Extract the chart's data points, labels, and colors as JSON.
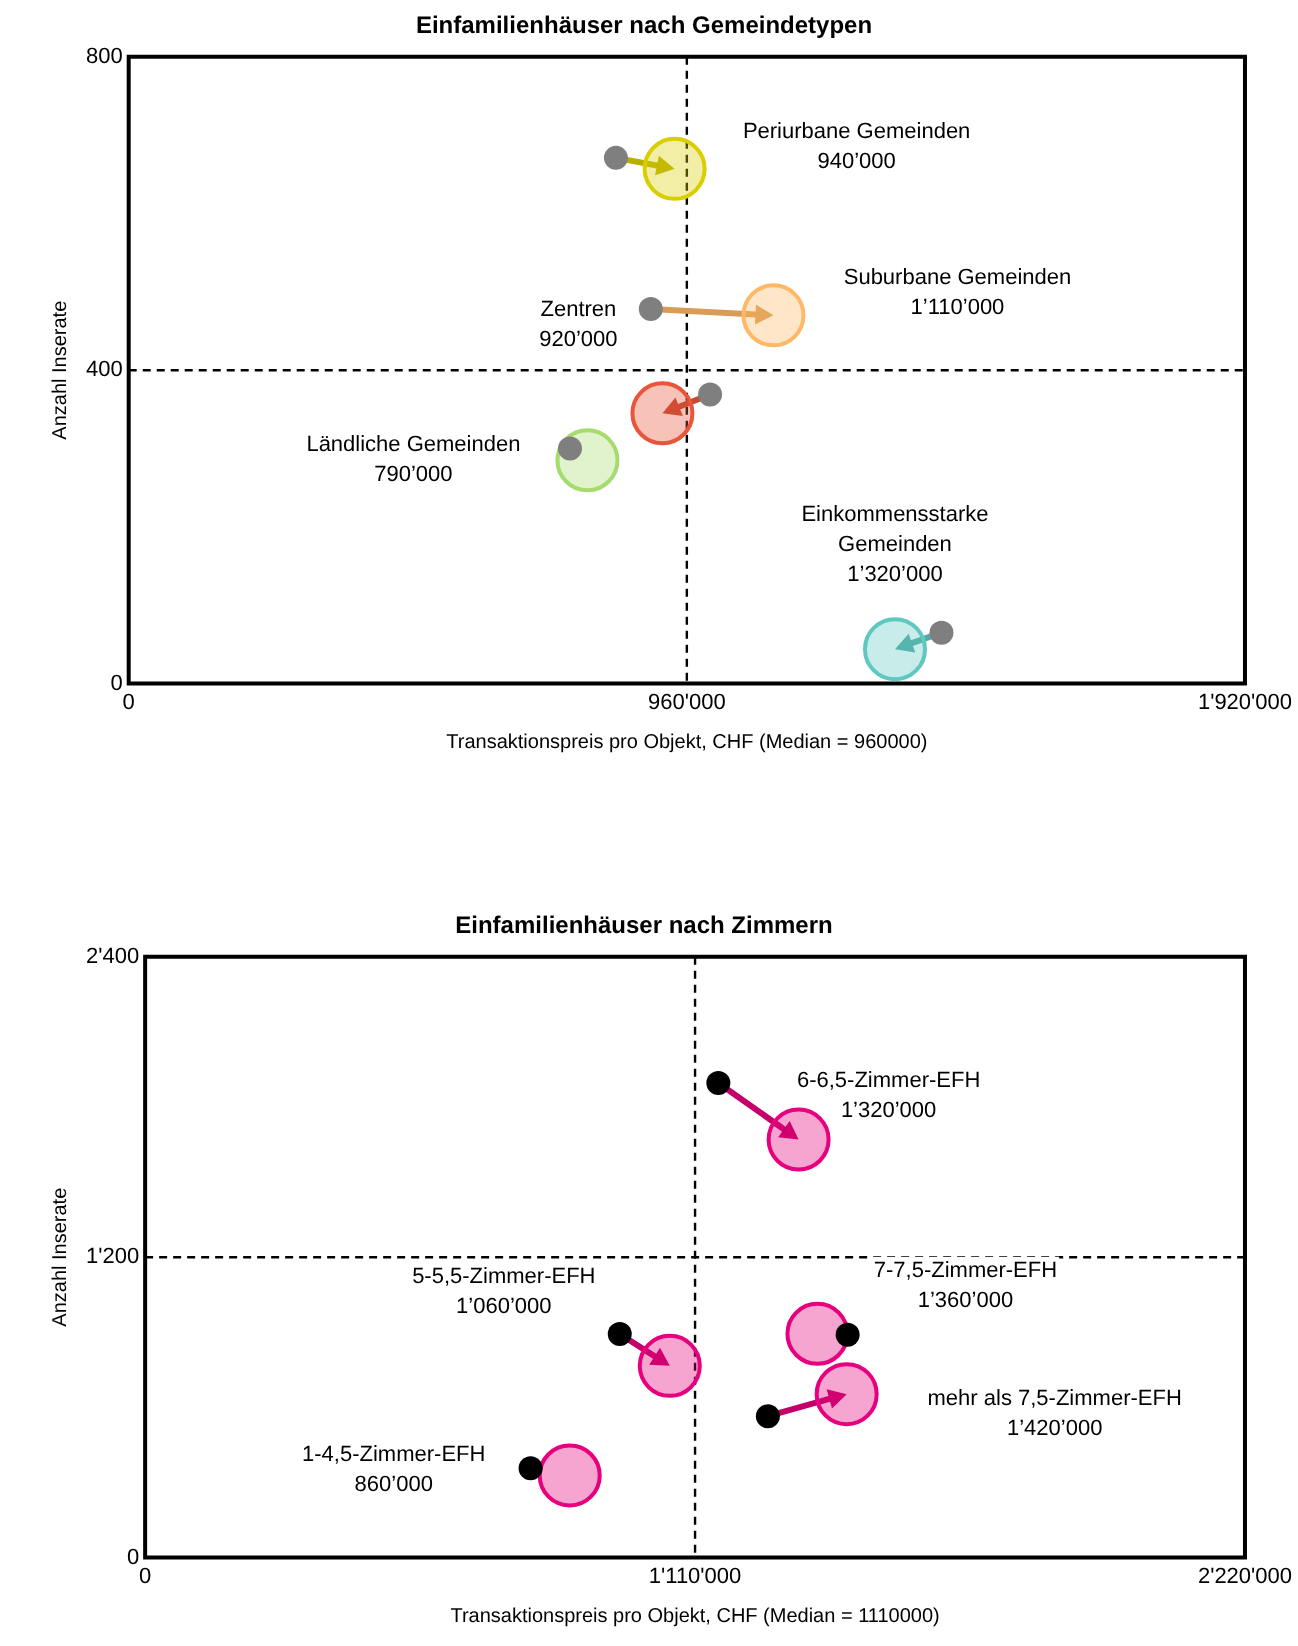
{
  "chart_data": [
    {
      "type": "scatter",
      "title": "Einfamilienhäuser nach Gemeindetypen",
      "xlabel": "Transaktionspreis pro Objekt, CHF (Median = 960000)",
      "ylabel": "Anzahl Inserate",
      "xlim": [
        0,
        1920000
      ],
      "xticks": [
        0,
        {
          "value": 960000,
          "label": "960'000"
        },
        {
          "value": 1920000,
          "label": "1'920'000"
        }
      ],
      "ylim": [
        0,
        800
      ],
      "yticks": [
        0,
        400,
        800
      ],
      "grid": false,
      "legend": false,
      "marker": "circle",
      "series": [
        {
          "color": "#7f7f7f",
          "x": [
            838000,
            898000,
            1000000,
            759000,
            1398000
          ],
          "values": [
            671,
            478,
            369,
            300,
            65
          ]
        },
        {
          "colors": [
            "#d9cf00",
            "#ffb866",
            "#e8553a",
            "#a6dc6e",
            "#5fc8c0"
          ],
          "x": [
            939000,
            1109000,
            918000,
            789000,
            1318000
          ],
          "values": [
            657,
            470,
            345,
            285,
            44
          ]
        }
      ],
      "ref_lines": [
        {
          "axis": "x",
          "value": 960000,
          "line_style": "dashed",
          "color": "#000000"
        },
        {
          "axis": "y",
          "value": 400,
          "line_style": "dashed",
          "color": "#000000"
        }
      ],
      "annotations": [
        "Periurbane Gemeinden\n940’000",
        "Suburbane Gemeinden\n1’110’000",
        "Zentren\n920’000",
        "Ländliche Gemeinden\n790’000",
        "Einkommensstarke\nGemeinden\n1’320’000"
      ]
    },
    {
      "type": "scatter",
      "title": "Einfamilienhäuser nach Zimmern",
      "xlabel": "Transaktionspreis pro Objekt, CHF (Median = 1110000)",
      "ylabel": "Anzahl Inserate",
      "xlim": [
        0,
        2220000
      ],
      "xticks": [
        0,
        {
          "value": 1110000,
          "label": "1'110'000"
        },
        {
          "value": 2220000,
          "label": "2'220'000"
        }
      ],
      "ylim": [
        0,
        2400
      ],
      "yticks": [
        0,
        {
          "value": 1200,
          "label": "1'200"
        },
        {
          "value": 2400,
          "label": "2'400"
        }
      ],
      "grid": false,
      "legend": false,
      "marker": "circle",
      "series": [
        {
          "color": "#000000",
          "x": [
            1157000,
            958000,
            1418000,
            1257000,
            778000
          ],
          "values": [
            1896,
            893,
            890,
            565,
            357
          ]
        },
        {
          "color": "#e6007e",
          "x": [
            1319000,
            1059000,
            1357000,
            1416000,
            857000
          ],
          "values": [
            1670,
            766,
            894,
            653,
            328
          ]
        }
      ],
      "ref_lines": [
        {
          "axis": "x",
          "value": 1110000,
          "line_style": "dashed",
          "color": "#000000"
        },
        {
          "axis": "y",
          "value": 1200,
          "line_style": "dashed",
          "color": "#000000"
        }
      ],
      "annotations": [
        "6-6,5-Zimmer-EFH\n1’320’000",
        "5-5,5-Zimmer-EFH\n1’060’000",
        "7-7,5-Zimmer-EFH\n1’360’000",
        "mehr als 7,5-Zimmer-EFH\n1’420’000",
        "1-4,5-Zimmer-EFH\n860’000"
      ]
    }
  ]
}
